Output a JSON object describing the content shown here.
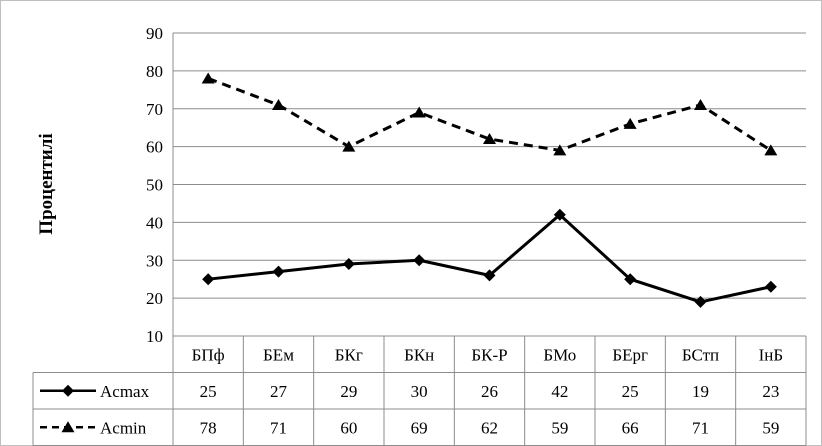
{
  "chart_data": {
    "type": "line",
    "ylabel": "Процентилі",
    "xlabel": "",
    "ylim": [
      10,
      90
    ],
    "yticks": [
      10,
      20,
      30,
      40,
      50,
      60,
      70,
      80,
      90
    ],
    "grid": "horizontal",
    "legend": "data-table",
    "categories": [
      "БПф",
      "БЕм",
      "БКг",
      "БКн",
      "БК-Р",
      "БМо",
      "БЕрг",
      "БСтп",
      "ІнБ"
    ],
    "series": [
      {
        "name": "Acmax",
        "style": "solid",
        "marker": "diamond",
        "color": "#000000",
        "values": [
          25,
          27,
          29,
          30,
          26,
          42,
          25,
          19,
          23
        ]
      },
      {
        "name": "Acmin",
        "style": "dashed",
        "marker": "triangle",
        "color": "#000000",
        "values": [
          78,
          71,
          60,
          69,
          62,
          59,
          66,
          71,
          59
        ]
      }
    ]
  }
}
